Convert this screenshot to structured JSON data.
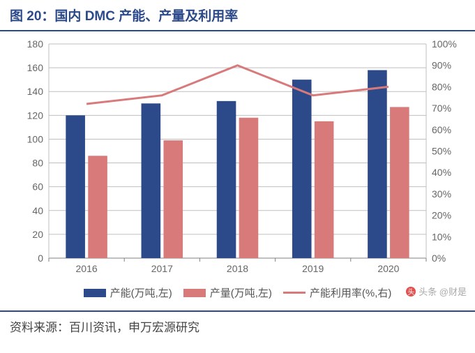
{
  "title": "图 20：国内 DMC 产能、产量及利用率",
  "source_label": "资料来源：百川资讯，申万宏源研究",
  "watermark": "头条 @财是",
  "chart": {
    "type": "bar+line",
    "background_color": "#ffffff",
    "plot_background": "#ffffff",
    "grid_color": "#bfbfbf",
    "axis_color": "#808080",
    "tick_font_size": 14,
    "tick_color": "#666666",
    "categories": [
      "2016",
      "2017",
      "2018",
      "2019",
      "2020"
    ],
    "y_left": {
      "min": 0,
      "max": 180,
      "step": 20
    },
    "y_right": {
      "min": 0,
      "max": 100,
      "step": 10,
      "suffix": "%"
    },
    "series": [
      {
        "name": "产能(万吨,左)",
        "type": "bar",
        "axis": "left",
        "color": "#2c4a8a",
        "values": [
          120,
          130,
          132,
          150,
          158
        ]
      },
      {
        "name": "产量(万吨,左)",
        "type": "bar",
        "axis": "left",
        "color": "#d87a7a",
        "values": [
          86,
          99,
          118,
          115,
          127
        ]
      },
      {
        "name": "产能利用率(%,右)",
        "type": "line",
        "axis": "right",
        "color": "#d87a7a",
        "line_width": 3,
        "values": [
          72,
          76,
          90,
          76,
          80
        ]
      }
    ],
    "bar_group_width": 0.55,
    "bar_gap": 0.04
  },
  "legend_labels": {
    "s0": "产能(万吨,左)",
    "s1": "产量(万吨,左)",
    "s2": "产能利用率(%,右)"
  }
}
